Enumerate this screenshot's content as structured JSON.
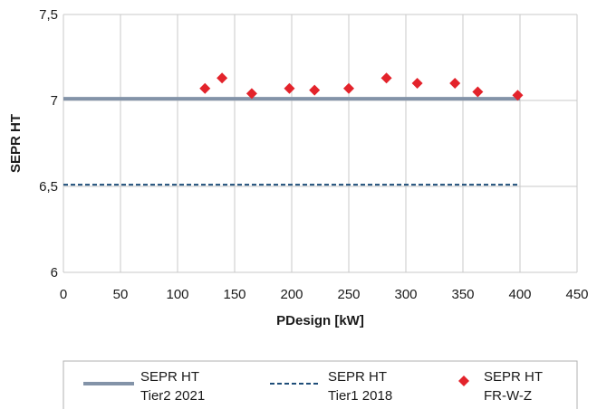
{
  "chart_data": {
    "type": "scatter",
    "xlabel": "PDesign [kW]",
    "ylabel": "SEPR HT",
    "xlim": [
      0,
      450
    ],
    "ylim": [
      6,
      7.5
    ],
    "x_ticks": [
      "0",
      "50",
      "100",
      "150",
      "200",
      "250",
      "300",
      "350",
      "400",
      "450"
    ],
    "y_ticks": [
      "6",
      "6,5",
      "7",
      "7,5"
    ],
    "grid": "vertical and horizontal",
    "legend_position": "bottom",
    "series": [
      {
        "name_lines": [
          "SEPR HT",
          "Tier2 2021"
        ],
        "kind": "line",
        "style": "solid",
        "color": "#8393a8",
        "x": [
          0,
          400
        ],
        "y": [
          7.01,
          7.01
        ]
      },
      {
        "name_lines": [
          "SEPR HT",
          "Tier1 2018"
        ],
        "kind": "line",
        "style": "dashed",
        "color": "#1f4e79",
        "x": [
          0,
          400
        ],
        "y": [
          6.51,
          6.51
        ]
      },
      {
        "name_lines": [
          "SEPR HT",
          "FR-W-Z"
        ],
        "kind": "scatter",
        "marker": "diamond",
        "color": "#e3232b",
        "x": [
          124,
          139,
          165,
          198,
          220,
          250,
          283,
          310,
          343,
          363,
          398
        ],
        "y": [
          7.07,
          7.13,
          7.04,
          7.07,
          7.06,
          7.07,
          7.13,
          7.1,
          7.1,
          7.05,
          7.03
        ]
      }
    ]
  }
}
